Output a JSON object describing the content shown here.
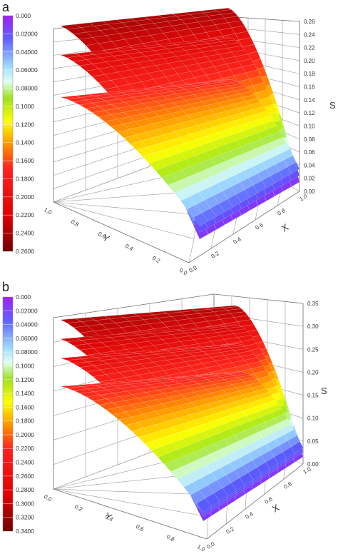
{
  "chart_data": [
    {
      "panel": "a",
      "type": "surface3d",
      "zlabel": "S",
      "xlabel": "X",
      "ylabel": "Y",
      "z_ticks": [
        "0.00",
        "0.02",
        "0.04",
        "0.06",
        "0.08",
        "0.10",
        "0.12",
        "0.14",
        "0.16",
        "0.18",
        "0.20",
        "0.22",
        "0.24",
        "0.26"
      ],
      "x_ticks": [
        "0.0",
        "0.2",
        "0.4",
        "0.6",
        "0.8",
        "1.0"
      ],
      "y_ticks": [
        "1.0",
        "0.8",
        "0.6",
        "0.4",
        "0.2",
        "0.0"
      ],
      "colorbar_labels": [
        "0.000",
        "0.02000",
        "0.04000",
        "0.06000",
        "0.08000",
        "0.1000",
        "0.1200",
        "0.1400",
        "0.1600",
        "0.1800",
        "0.2000",
        "0.2200",
        "0.2400",
        "0.2600"
      ],
      "zlim": [
        0,
        0.26
      ],
      "surfaces": [
        {
          "z_high": 0.25,
          "z_low": 0.0
        },
        {
          "z_high": 0.225,
          "z_low": 0.01
        },
        {
          "z_high": 0.18,
          "z_low": 0.02
        }
      ]
    },
    {
      "panel": "b",
      "type": "surface3d",
      "zlabel": "S",
      "xlabel": "X",
      "ylabel": "Y",
      "z_ticks": [
        "0.00",
        "0.05",
        "0.10",
        "0.15",
        "0.20",
        "0.25",
        "0.30",
        "0.35"
      ],
      "x_ticks": [
        "0.0",
        "0.2",
        "0.4",
        "0.6",
        "0.8",
        "1.0"
      ],
      "y_ticks": [
        "0.0",
        "0.2",
        "0.4",
        "0.6",
        "0.8",
        "1.0"
      ],
      "colorbar_labels": [
        "0.000",
        "0.02000",
        "0.04000",
        "0.06000",
        "0.08000",
        "0.1000",
        "0.1200",
        "0.1400",
        "0.1600",
        "0.1800",
        "0.2000",
        "0.2200",
        "0.2400",
        "0.2600",
        "0.2800",
        "0.3000",
        "0.3200",
        "0.3400"
      ],
      "zlim": [
        0,
        0.35
      ],
      "surfaces": [
        {
          "z_high": 0.33,
          "z_low": 0.0
        },
        {
          "z_high": 0.31,
          "z_low": 0.01
        },
        {
          "z_high": 0.29,
          "z_low": 0.015
        },
        {
          "z_high": 0.25,
          "z_low": 0.02
        }
      ]
    }
  ]
}
